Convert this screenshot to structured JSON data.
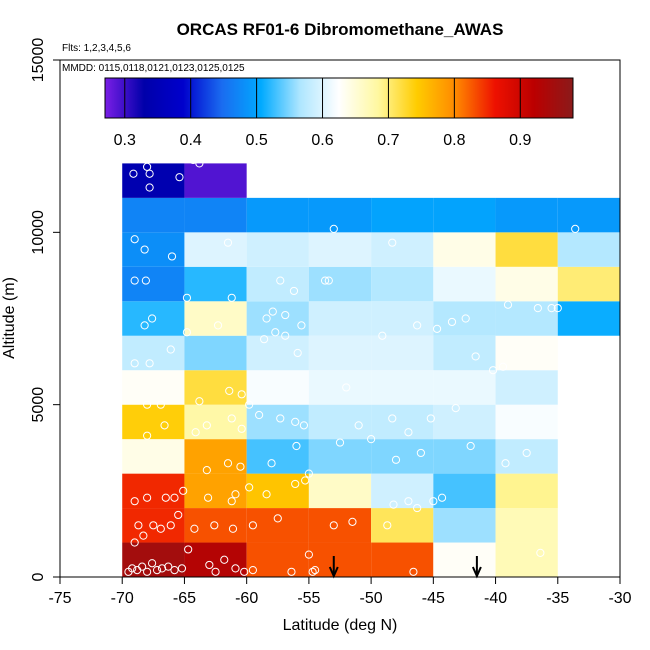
{
  "chart_data": {
    "type": "heatmap",
    "title": "ORCAS RF01-6 Dibromomethane_AWAS",
    "flights_label": "Flts: 1,2,3,4,5,6",
    "dates_label": "MMDD: 0115,0118,0121,0123,0125,0125",
    "xlabel": "Latitude (deg N)",
    "ylabel": "Altitude (m)",
    "xlim": [
      -75,
      -30
    ],
    "ylim": [
      0,
      15000
    ],
    "x_ticks": [
      "-75",
      "-70",
      "-65",
      "-60",
      "-55",
      "-50",
      "-45",
      "-40",
      "-35",
      "-30"
    ],
    "y_ticks": [
      "0",
      "5000",
      "10000",
      "15000"
    ],
    "colorbar": {
      "range": [
        0.27,
        0.98
      ],
      "tick_labels": [
        "0.3",
        "0.4",
        "0.5",
        "0.6",
        "0.7",
        "0.8",
        "0.9"
      ],
      "stops": [
        "#7a1ee6",
        "#0000aa",
        "#0000cc",
        "#1a6cf0",
        "#00aaff",
        "#aee6ff",
        "#ffffff",
        "#fff8a0",
        "#ffcc00",
        "#ff8800",
        "#ee1100",
        "#bb0000",
        "#8b1a1a"
      ]
    },
    "lat_bins": [
      -70,
      -65,
      -60,
      -55,
      -50,
      -45,
      -40,
      -35
    ],
    "alt_bins": [
      0,
      1000,
      2000,
      3000,
      4000,
      5000,
      6000,
      7000,
      8000,
      9000,
      10000,
      11000,
      12000
    ],
    "cells": [
      [
        0.95,
        0.93,
        0.83,
        0.83,
        0.83,
        0.63,
        0.67,
        null
      ],
      [
        0.85,
        0.83,
        0.83,
        0.83,
        0.71,
        0.56,
        0.67,
        null
      ],
      [
        0.85,
        0.78,
        0.75,
        0.66,
        0.59,
        0.53,
        0.69,
        null
      ],
      [
        0.64,
        0.78,
        0.53,
        0.55,
        0.55,
        0.55,
        0.58,
        null
      ],
      [
        0.74,
        0.68,
        0.56,
        0.58,
        0.58,
        0.59,
        0.62,
        null
      ],
      [
        0.63,
        0.72,
        0.62,
        0.61,
        0.61,
        0.61,
        0.59,
        null
      ],
      [
        0.58,
        0.55,
        0.59,
        0.6,
        0.6,
        0.58,
        0.63,
        null
      ],
      [
        0.52,
        0.66,
        0.56,
        0.59,
        0.59,
        0.57,
        0.57,
        0.51
      ],
      [
        0.47,
        0.52,
        0.58,
        0.56,
        0.57,
        0.61,
        0.64,
        0.7
      ],
      [
        0.48,
        0.6,
        0.59,
        0.6,
        0.59,
        0.64,
        0.72,
        0.57
      ],
      [
        0.47,
        0.47,
        0.49,
        0.49,
        0.5,
        0.5,
        0.49,
        0.49
      ],
      [
        0.34,
        0.29,
        null,
        null,
        null,
        null,
        null,
        null
      ]
    ],
    "points": [
      [
        -69.5,
        150
      ],
      [
        -69.2,
        250
      ],
      [
        -68.8,
        200
      ],
      [
        -68.4,
        300
      ],
      [
        -68.0,
        150
      ],
      [
        -67.6,
        400
      ],
      [
        -67.2,
        200
      ],
      [
        -66.8,
        250
      ],
      [
        -66.3,
        300
      ],
      [
        -65.8,
        200
      ],
      [
        -65.2,
        250
      ],
      [
        -64.7,
        800
      ],
      [
        -63.0,
        350
      ],
      [
        -62.5,
        150
      ],
      [
        -61.8,
        500
      ],
      [
        -60.9,
        250
      ],
      [
        -60.2,
        150
      ],
      [
        -59.5,
        200
      ],
      [
        -56.4,
        150
      ],
      [
        -55.0,
        650
      ],
      [
        -54.7,
        150
      ],
      [
        -54.5,
        200
      ],
      [
        -46.6,
        150
      ],
      [
        -69.0,
        1000
      ],
      [
        -68.7,
        1500
      ],
      [
        -68.3,
        1200
      ],
      [
        -67.5,
        1500
      ],
      [
        -66.9,
        1400
      ],
      [
        -66.1,
        1500
      ],
      [
        -65.5,
        1800
      ],
      [
        -64.2,
        1400
      ],
      [
        -62.6,
        1500
      ],
      [
        -61.1,
        1400
      ],
      [
        -59.5,
        1500
      ],
      [
        -57.5,
        1700
      ],
      [
        -53.0,
        1500
      ],
      [
        -51.5,
        1600
      ],
      [
        -48.7,
        1500
      ],
      [
        -48.2,
        2100
      ],
      [
        -47.0,
        2200
      ],
      [
        -46.3,
        2000
      ],
      [
        -36.4,
        700
      ],
      [
        -69.0,
        2200
      ],
      [
        -68.0,
        2300
      ],
      [
        -66.5,
        2300
      ],
      [
        -65.8,
        2300
      ],
      [
        -65.1,
        2500
      ],
      [
        -63.1,
        2300
      ],
      [
        -61.2,
        2200
      ],
      [
        -60.9,
        2400
      ],
      [
        -59.8,
        2600
      ],
      [
        -58.4,
        2400
      ],
      [
        -56.1,
        2700
      ],
      [
        -55.3,
        2800
      ],
      [
        -45.0,
        2200
      ],
      [
        -44.3,
        2300
      ],
      [
        -63.2,
        3100
      ],
      [
        -61.5,
        3300
      ],
      [
        -60.5,
        3200
      ],
      [
        -58.0,
        3300
      ],
      [
        -56.0,
        3800
      ],
      [
        -55.0,
        3000
      ],
      [
        -52.5,
        3900
      ],
      [
        -48.0,
        3400
      ],
      [
        -46.0,
        3600
      ],
      [
        -42.0,
        3800
      ],
      [
        -39.2,
        3300
      ],
      [
        -37.5,
        3600
      ],
      [
        -68.0,
        4100
      ],
      [
        -66.6,
        4400
      ],
      [
        -64.1,
        4200
      ],
      [
        -63.2,
        4400
      ],
      [
        -61.2,
        4600
      ],
      [
        -60.4,
        4300
      ],
      [
        -59.0,
        4700
      ],
      [
        -57.3,
        4600
      ],
      [
        -56.1,
        4500
      ],
      [
        -55.4,
        4400
      ],
      [
        -51.0,
        4400
      ],
      [
        -50.0,
        4000
      ],
      [
        -48.3,
        4600
      ],
      [
        -47.0,
        4200
      ],
      [
        -45.2,
        4600
      ],
      [
        -43.2,
        4900
      ],
      [
        -34.0,
        5000
      ],
      [
        -68.0,
        5000
      ],
      [
        -66.9,
        5000
      ],
      [
        -63.8,
        5100
      ],
      [
        -61.4,
        5400
      ],
      [
        -60.4,
        5300
      ],
      [
        -59.8,
        5000
      ],
      [
        -52.0,
        5500
      ],
      [
        -40.2,
        6000
      ],
      [
        -39.4,
        6100
      ],
      [
        -69.0,
        6200
      ],
      [
        -67.8,
        6200
      ],
      [
        -66.1,
        6600
      ],
      [
        -58.6,
        6900
      ],
      [
        -57.7,
        7100
      ],
      [
        -56.9,
        7000
      ],
      [
        -55.9,
        6500
      ],
      [
        -49.1,
        7000
      ],
      [
        -46.3,
        7300
      ],
      [
        -44.7,
        7200
      ],
      [
        -43.5,
        7400
      ],
      [
        -42.4,
        7500
      ],
      [
        -41.6,
        6400
      ],
      [
        -68.2,
        7300
      ],
      [
        -67.6,
        7500
      ],
      [
        -64.8,
        7100
      ],
      [
        -62.3,
        7300
      ],
      [
        -58.4,
        7500
      ],
      [
        -57.9,
        7700
      ],
      [
        -56.9,
        7600
      ],
      [
        -55.6,
        7300
      ],
      [
        -36.6,
        7800
      ],
      [
        -35.5,
        7800
      ],
      [
        -35.0,
        7800
      ],
      [
        -39.0,
        7900
      ],
      [
        -69.0,
        8600
      ],
      [
        -68.1,
        8600
      ],
      [
        -64.8,
        8100
      ],
      [
        -61.2,
        8100
      ],
      [
        -57.3,
        8600
      ],
      [
        -56.2,
        8300
      ],
      [
        -53.7,
        8600
      ],
      [
        -53.4,
        8600
      ],
      [
        -69.0,
        9800
      ],
      [
        -68.2,
        9500
      ],
      [
        -66.0,
        9300
      ],
      [
        -61.5,
        9700
      ],
      [
        -53.0,
        10100
      ],
      [
        -48.3,
        9700
      ],
      [
        -33.6,
        10100
      ],
      [
        -69.1,
        11700
      ],
      [
        -68.0,
        11900
      ],
      [
        -67.8,
        11700
      ],
      [
        -67.8,
        11300
      ],
      [
        -65.4,
        11600
      ],
      [
        -64.3,
        12100
      ],
      [
        -63.8,
        12000
      ],
      [
        -64.9,
        12300
      ]
    ],
    "arrow_latitudes": [
      -53.0,
      -41.5
    ]
  }
}
